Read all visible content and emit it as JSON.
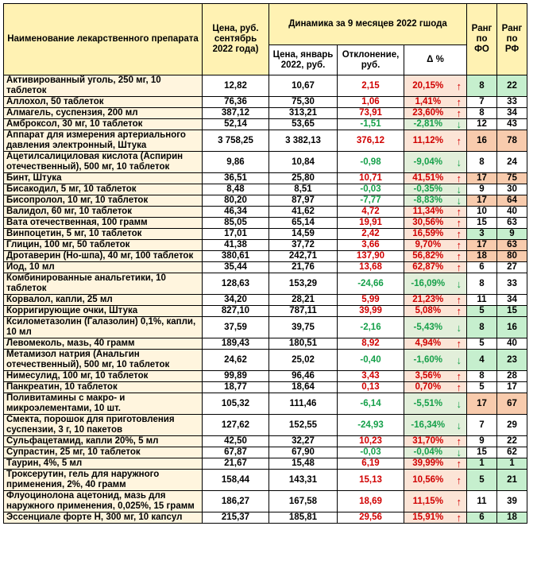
{
  "header": {
    "name": "Наименование лекарственного препарата",
    "price_sep": "Цена, руб. сентябрь 2022 года)",
    "dynamics": "Динамика за 9 месяцев 2022 гшода",
    "price_jan": "Цена, январь 2022, руб.",
    "deviation": "Отклонение, руб.",
    "delta_pct": "Δ %",
    "rank_fo": "Ранг по ФО",
    "rank_rf": "Ранг по РФ"
  },
  "colors": {
    "header_bg": "#fff2b3",
    "name_bg": "#fff5de",
    "up_text": "#d00000",
    "down_text": "#16a04a",
    "pct_up_bg": "#fce4d6",
    "pct_down_bg": "#e2efda",
    "rank_high_bg": "#f8cbad",
    "rank_low_bg": "#c6efce",
    "rank_mid_bg": "#ffffff"
  },
  "rows": [
    {
      "name": "Активированный уголь, 250 мг, 10 таблеток",
      "sep": "12,82",
      "jan": "10,67",
      "dev": "2,15",
      "pct": "20,15%",
      "dir": "up",
      "arrow": "↑",
      "fo": "8",
      "rf": "22",
      "fo_c": "low",
      "rf_c": "low",
      "lines": 2
    },
    {
      "name": "Аллохол, 50 таблеток",
      "sep": "76,36",
      "jan": "75,30",
      "dev": "1,06",
      "pct": "1,41%",
      "dir": "up",
      "arrow": "↑",
      "fo": "7",
      "rf": "33",
      "fo_c": "mid",
      "rf_c": "mid",
      "lines": 1
    },
    {
      "name": "Алмагель, суспензия, 200 мл",
      "sep": "387,12",
      "jan": "313,21",
      "dev": "73,91",
      "pct": "23,60%",
      "dir": "up",
      "arrow": "↑",
      "fo": "8",
      "rf": "34",
      "fo_c": "mid",
      "rf_c": "mid",
      "lines": 1
    },
    {
      "name": "Амброксол, 30 мг, 10 таблеток",
      "sep": "52,14",
      "jan": "53,65",
      "dev": "-1,51",
      "pct": "-2,81%",
      "dir": "down",
      "arrow": "↓",
      "fo": "12",
      "rf": "43",
      "fo_c": "mid",
      "rf_c": "mid",
      "lines": 1
    },
    {
      "name": "Аппарат для измерения артериального давления электронный, Штука",
      "sep": "3 758,25",
      "jan": "3 382,13",
      "dev": "376,12",
      "pct": "11,12%",
      "dir": "up",
      "arrow": "↑",
      "fo": "16",
      "rf": "78",
      "fo_c": "high",
      "rf_c": "high",
      "lines": 2
    },
    {
      "name": "Ацетилсалициловая кислота (Аспирин отечественный), 500 мг, 10 таблеток",
      "sep": "9,86",
      "jan": "10,84",
      "dev": "-0,98",
      "pct": "-9,04%",
      "dir": "down",
      "arrow": "↓",
      "fo": "8",
      "rf": "24",
      "fo_c": "mid",
      "rf_c": "mid",
      "lines": 2
    },
    {
      "name": "Бинт, Штука",
      "sep": "36,51",
      "jan": "25,80",
      "dev": "10,71",
      "pct": "41,51%",
      "dir": "up",
      "arrow": "↑",
      "fo": "17",
      "rf": "75",
      "fo_c": "high",
      "rf_c": "high",
      "lines": 1
    },
    {
      "name": "Бисакодил, 5 мг, 10 таблеток",
      "sep": "8,48",
      "jan": "8,51",
      "dev": "-0,03",
      "pct": "-0,35%",
      "dir": "down",
      "arrow": "↓",
      "fo": "9",
      "rf": "30",
      "fo_c": "mid",
      "rf_c": "mid",
      "lines": 1
    },
    {
      "name": "Бисопролол, 10 мг, 10 таблеток",
      "sep": "80,20",
      "jan": "87,97",
      "dev": "-7,77",
      "pct": "-8,83%",
      "dir": "down",
      "arrow": "↓",
      "fo": "17",
      "rf": "64",
      "fo_c": "high",
      "rf_c": "high",
      "lines": 1
    },
    {
      "name": "Валидол, 60 мг, 10 таблеток",
      "sep": "46,34",
      "jan": "41,62",
      "dev": "4,72",
      "pct": "11,34%",
      "dir": "up",
      "arrow": "↑",
      "fo": "10",
      "rf": "40",
      "fo_c": "mid",
      "rf_c": "mid",
      "lines": 1
    },
    {
      "name": "Вата отечественная, 100 грамм",
      "sep": "85,05",
      "jan": "65,14",
      "dev": "19,91",
      "pct": "30,56%",
      "dir": "up",
      "arrow": "↑",
      "fo": "15",
      "rf": "63",
      "fo_c": "mid",
      "rf_c": "mid",
      "lines": 1
    },
    {
      "name": "Винпоцетин, 5 мг, 10 таблеток",
      "sep": "17,01",
      "jan": "14,59",
      "dev": "2,42",
      "pct": "16,59%",
      "dir": "up",
      "arrow": "↑",
      "fo": "3",
      "rf": "9",
      "fo_c": "low",
      "rf_c": "low",
      "lines": 1
    },
    {
      "name": "Глицин, 100 мг, 50 таблеток",
      "sep": "41,38",
      "jan": "37,72",
      "dev": "3,66",
      "pct": "9,70%",
      "dir": "up",
      "arrow": "↑",
      "fo": "17",
      "rf": "63",
      "fo_c": "high",
      "rf_c": "high",
      "lines": 1
    },
    {
      "name": "Дротаверин (Но-шпа), 40 мг, 100 таблеток",
      "sep": "380,61",
      "jan": "242,71",
      "dev": "137,90",
      "pct": "56,82%",
      "dir": "up",
      "arrow": "↑",
      "fo": "18",
      "rf": "80",
      "fo_c": "high",
      "rf_c": "high",
      "lines": 1
    },
    {
      "name": "Иод, 10 мл",
      "sep": "35,44",
      "jan": "21,76",
      "dev": "13,68",
      "pct": "62,87%",
      "dir": "up",
      "arrow": "↑",
      "fo": "6",
      "rf": "27",
      "fo_c": "mid",
      "rf_c": "mid",
      "lines": 1
    },
    {
      "name": "Комбинированные анальгетики, 10 таблеток",
      "sep": "128,63",
      "jan": "153,29",
      "dev": "-24,66",
      "pct": "-16,09%",
      "dir": "down",
      "arrow": "↓",
      "fo": "8",
      "rf": "33",
      "fo_c": "mid",
      "rf_c": "mid",
      "lines": 2
    },
    {
      "name": "Корвалол, капли, 25 мл",
      "sep": "34,20",
      "jan": "28,21",
      "dev": "5,99",
      "pct": "21,23%",
      "dir": "up",
      "arrow": "↑",
      "fo": "11",
      "rf": "34",
      "fo_c": "mid",
      "rf_c": "mid",
      "lines": 1
    },
    {
      "name": "Корригирующие очки, Штука",
      "sep": "827,10",
      "jan": "787,11",
      "dev": "39,99",
      "pct": "5,08%",
      "dir": "up",
      "arrow": "↑",
      "fo": "5",
      "rf": "15",
      "fo_c": "low",
      "rf_c": "low",
      "lines": 1
    },
    {
      "name": "Ксилометазолин (Галазолин) 0,1%, капли, 10 мл",
      "sep": "37,59",
      "jan": "39,75",
      "dev": "-2,16",
      "pct": "-5,43%",
      "dir": "down",
      "arrow": "↓",
      "fo": "8",
      "rf": "16",
      "fo_c": "low",
      "rf_c": "low",
      "lines": 2
    },
    {
      "name": "Левомеколь, мазь, 40 грамм",
      "sep": "189,43",
      "jan": "180,51",
      "dev": "8,92",
      "pct": "4,94%",
      "dir": "up",
      "arrow": "↑",
      "fo": "5",
      "rf": "40",
      "fo_c": "mid",
      "rf_c": "mid",
      "lines": 1
    },
    {
      "name": "Метамизол натрия (Анальгин отечественный), 500 мг, 10 таблеток",
      "sep": "24,62",
      "jan": "25,02",
      "dev": "-0,40",
      "pct": "-1,60%",
      "dir": "down",
      "arrow": "↓",
      "fo": "4",
      "rf": "23",
      "fo_c": "low",
      "rf_c": "low",
      "lines": 2
    },
    {
      "name": "Нимесулид, 100 мг, 10 таблеток",
      "sep": "99,89",
      "jan": "96,46",
      "dev": "3,43",
      "pct": "3,56%",
      "dir": "up",
      "arrow": "↑",
      "fo": "8",
      "rf": "28",
      "fo_c": "mid",
      "rf_c": "mid",
      "lines": 1
    },
    {
      "name": "Панкреатин, 10 таблеток",
      "sep": "18,77",
      "jan": "18,64",
      "dev": "0,13",
      "pct": "0,70%",
      "dir": "up",
      "arrow": "↑",
      "fo": "5",
      "rf": "17",
      "fo_c": "mid",
      "rf_c": "mid",
      "lines": 1
    },
    {
      "name": "Поливитамины с макро- и микроэлементами, 10 шт.",
      "sep": "105,32",
      "jan": "111,46",
      "dev": "-6,14",
      "pct": "-5,51%",
      "dir": "down",
      "arrow": "↓",
      "fo": "17",
      "rf": "67",
      "fo_c": "high",
      "rf_c": "high",
      "lines": 2
    },
    {
      "name": "Смекта, порошок для приготовления суспензии, 3 г, 10 пакетов",
      "sep": "127,62",
      "jan": "152,55",
      "dev": "-24,93",
      "pct": "-16,34%",
      "dir": "down",
      "arrow": "↓",
      "fo": "7",
      "rf": "29",
      "fo_c": "mid",
      "rf_c": "mid",
      "lines": 2
    },
    {
      "name": "Сульфацетамид, капли 20%, 5 мл",
      "sep": "42,50",
      "jan": "32,27",
      "dev": "10,23",
      "pct": "31,70%",
      "dir": "up",
      "arrow": "↑",
      "fo": "9",
      "rf": "22",
      "fo_c": "mid",
      "rf_c": "mid",
      "lines": 1
    },
    {
      "name": "Супрастин, 25 мг, 10 таблеток",
      "sep": "67,87",
      "jan": "67,90",
      "dev": "-0,03",
      "pct": "-0,04%",
      "dir": "down",
      "arrow": "↓",
      "fo": "15",
      "rf": "62",
      "fo_c": "mid",
      "rf_c": "mid",
      "lines": 1
    },
    {
      "name": "Таурин, 4%, 5 мл",
      "sep": "21,67",
      "jan": "15,48",
      "dev": "6,19",
      "pct": "39,99%",
      "dir": "up",
      "arrow": "↑",
      "fo": "1",
      "rf": "1",
      "fo_c": "low",
      "rf_c": "low",
      "lines": 1
    },
    {
      "name": "Троксерутин, гель для наружного применения, 2%, 40 грамм",
      "sep": "158,44",
      "jan": "143,31",
      "dev": "15,13",
      "pct": "10,56%",
      "dir": "up",
      "arrow": "↑",
      "fo": "5",
      "rf": "21",
      "fo_c": "low",
      "rf_c": "low",
      "lines": 2
    },
    {
      "name": "Флуоцинолона ацетонид, мазь для наружного применения, 0,025%, 15 грамм",
      "sep": "186,27",
      "jan": "167,58",
      "dev": "18,69",
      "pct": "11,15%",
      "dir": "up",
      "arrow": "↑",
      "fo": "11",
      "rf": "39",
      "fo_c": "mid",
      "rf_c": "mid",
      "lines": 2
    },
    {
      "name": "Эссенциале форте Н, 300 мг, 10 капсул",
      "sep": "215,37",
      "jan": "185,81",
      "dev": "29,56",
      "pct": "15,91%",
      "dir": "up",
      "arrow": "↑",
      "fo": "6",
      "rf": "18",
      "fo_c": "low",
      "rf_c": "low",
      "lines": 1
    }
  ]
}
